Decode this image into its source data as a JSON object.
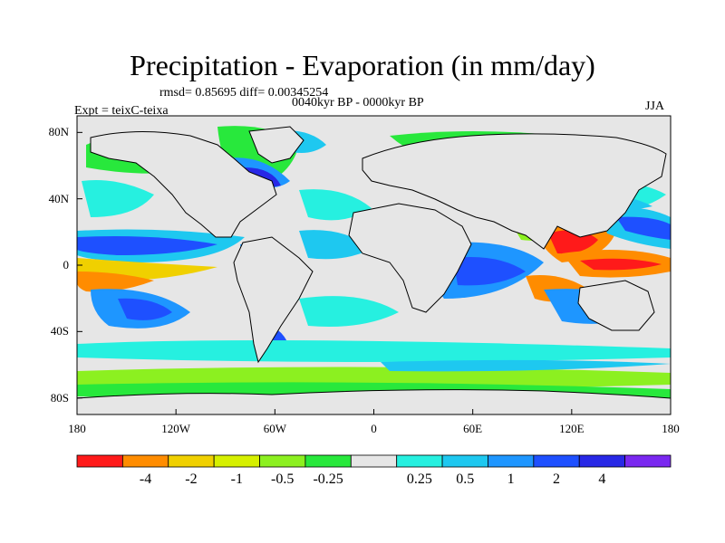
{
  "title": "Precipitation - Evaporation (in mm/day)",
  "stats_line": "rmsd= 0.85695  diff= 0.00345254",
  "period_line": "0040kyr BP - 0000kyr BP",
  "experiment_line": "Expt = teixC-teixa",
  "season": "JJA",
  "y_ticks": [
    {
      "lat": 80,
      "label": "80N"
    },
    {
      "lat": 40,
      "label": "40N"
    },
    {
      "lat": 0,
      "label": "0"
    },
    {
      "lat": -40,
      "label": "40S"
    },
    {
      "lat": -80,
      "label": "80S"
    }
  ],
  "x_ticks": [
    {
      "lon": -180,
      "label": "180"
    },
    {
      "lon": -120,
      "label": "120W"
    },
    {
      "lon": -60,
      "label": "60W"
    },
    {
      "lon": 0,
      "label": "0"
    },
    {
      "lon": 60,
      "label": "60E"
    },
    {
      "lon": 120,
      "label": "120E"
    },
    {
      "lon": 180,
      "label": "180"
    }
  ],
  "colorbar": {
    "colors": [
      "#ff1a1a",
      "#ff8c00",
      "#f0d000",
      "#d6f000",
      "#8cf020",
      "#28e83c",
      "#e6e6e6",
      "#26f0e0",
      "#1ec8f0",
      "#1e96ff",
      "#1e50ff",
      "#2828e6",
      "#7a28f0"
    ],
    "labels": [
      "-4",
      "-2",
      "-1",
      "-0.5",
      "-0.25",
      "0.25",
      "0.5",
      "1",
      "2",
      "4"
    ]
  },
  "colors": {
    "land": "#e6e6e6",
    "ocean_neutral": "#e6e6e6",
    "coastline": "#000000"
  }
}
